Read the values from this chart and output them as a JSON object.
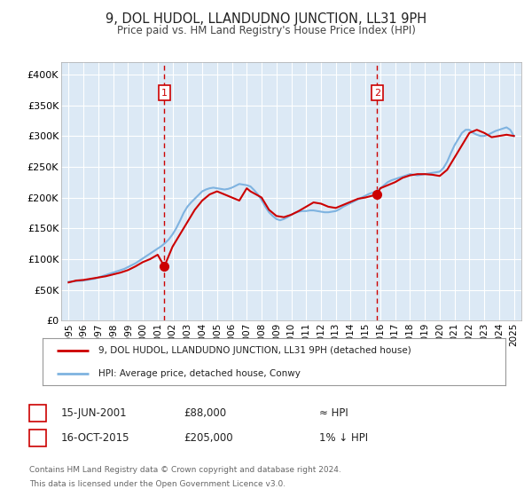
{
  "title": "9, DOL HUDOL, LLANDUDNO JUNCTION, LL31 9PH",
  "subtitle": "Price paid vs. HM Land Registry's House Price Index (HPI)",
  "background_color": "#ffffff",
  "plot_bg_color": "#dce9f5",
  "grid_color": "#ffffff",
  "hpi_line_color": "#7fb3e0",
  "price_line_color": "#cc0000",
  "ylim": [
    0,
    420000
  ],
  "yticks": [
    0,
    50000,
    100000,
    150000,
    200000,
    250000,
    300000,
    350000,
    400000
  ],
  "ytick_labels": [
    "£0",
    "£50K",
    "£100K",
    "£150K",
    "£200K",
    "£250K",
    "£300K",
    "£350K",
    "£400K"
  ],
  "xlim_start": 1994.5,
  "xlim_end": 2025.5,
  "xticks": [
    1995,
    1996,
    1997,
    1998,
    1999,
    2000,
    2001,
    2002,
    2003,
    2004,
    2005,
    2006,
    2007,
    2008,
    2009,
    2010,
    2011,
    2012,
    2013,
    2014,
    2015,
    2016,
    2017,
    2018,
    2019,
    2020,
    2021,
    2022,
    2023,
    2024,
    2025
  ],
  "marker1_x": 2001.45,
  "marker1_y": 88000,
  "marker1_label": "1",
  "marker1_date": "15-JUN-2001",
  "marker1_price": "£88,000",
  "marker1_hpi": "≈ HPI",
  "marker2_x": 2015.79,
  "marker2_y": 205000,
  "marker2_label": "2",
  "marker2_date": "16-OCT-2015",
  "marker2_price": "£205,000",
  "marker2_hpi": "1% ↓ HPI",
  "legend_label1": "9, DOL HUDOL, LLANDUDNO JUNCTION, LL31 9PH (detached house)",
  "legend_label2": "HPI: Average price, detached house, Conwy",
  "footnote1": "Contains HM Land Registry data © Crown copyright and database right 2024.",
  "footnote2": "This data is licensed under the Open Government Licence v3.0.",
  "hpi_data_x": [
    1995.0,
    1995.25,
    1995.5,
    1995.75,
    1996.0,
    1996.25,
    1996.5,
    1996.75,
    1997.0,
    1997.25,
    1997.5,
    1997.75,
    1998.0,
    1998.25,
    1998.5,
    1998.75,
    1999.0,
    1999.25,
    1999.5,
    1999.75,
    2000.0,
    2000.25,
    2000.5,
    2000.75,
    2001.0,
    2001.25,
    2001.5,
    2001.75,
    2002.0,
    2002.25,
    2002.5,
    2002.75,
    2003.0,
    2003.25,
    2003.5,
    2003.75,
    2004.0,
    2004.25,
    2004.5,
    2004.75,
    2005.0,
    2005.25,
    2005.5,
    2005.75,
    2006.0,
    2006.25,
    2006.5,
    2006.75,
    2007.0,
    2007.25,
    2007.5,
    2007.75,
    2008.0,
    2008.25,
    2008.5,
    2008.75,
    2009.0,
    2009.25,
    2009.5,
    2009.75,
    2010.0,
    2010.25,
    2010.5,
    2010.75,
    2011.0,
    2011.25,
    2011.5,
    2011.75,
    2012.0,
    2012.25,
    2012.5,
    2012.75,
    2013.0,
    2013.25,
    2013.5,
    2013.75,
    2014.0,
    2014.25,
    2014.5,
    2014.75,
    2015.0,
    2015.25,
    2015.5,
    2015.75,
    2016.0,
    2016.25,
    2016.5,
    2016.75,
    2017.0,
    2017.25,
    2017.5,
    2017.75,
    2018.0,
    2018.25,
    2018.5,
    2018.75,
    2019.0,
    2019.25,
    2019.5,
    2019.75,
    2020.0,
    2020.25,
    2020.5,
    2020.75,
    2021.0,
    2021.25,
    2021.5,
    2021.75,
    2022.0,
    2022.25,
    2022.5,
    2022.75,
    2023.0,
    2023.25,
    2023.5,
    2023.75,
    2024.0,
    2024.25,
    2024.5,
    2024.75,
    2025.0
  ],
  "hpi_data_y": [
    63000,
    63500,
    64000,
    64500,
    65000,
    66000,
    67000,
    68000,
    70000,
    72000,
    74000,
    76000,
    78000,
    80000,
    82000,
    84000,
    87000,
    90000,
    93000,
    97000,
    101000,
    105000,
    109000,
    113000,
    117000,
    121000,
    126000,
    132000,
    140000,
    150000,
    162000,
    175000,
    185000,
    192000,
    198000,
    204000,
    210000,
    213000,
    215000,
    216000,
    215000,
    214000,
    213000,
    214000,
    216000,
    219000,
    222000,
    221000,
    220000,
    218000,
    212000,
    205000,
    196000,
    185000,
    176000,
    170000,
    165000,
    163000,
    165000,
    168000,
    172000,
    175000,
    177000,
    178000,
    178000,
    179000,
    179000,
    178000,
    177000,
    176000,
    176000,
    177000,
    178000,
    181000,
    185000,
    188000,
    191000,
    194000,
    197000,
    200000,
    203000,
    206000,
    208000,
    210000,
    215000,
    220000,
    225000,
    228000,
    230000,
    232000,
    234000,
    236000,
    238000,
    237000,
    236000,
    237000,
    238000,
    239000,
    240000,
    241000,
    242000,
    248000,
    258000,
    272000,
    285000,
    295000,
    305000,
    310000,
    310000,
    305000,
    302000,
    300000,
    300000,
    302000,
    305000,
    308000,
    310000,
    312000,
    314000,
    310000,
    300000
  ],
  "price_data_x": [
    1995.0,
    1995.5,
    1996.0,
    1996.5,
    1997.0,
    1997.5,
    1998.0,
    1998.5,
    1999.0,
    1999.5,
    2000.0,
    2000.5,
    2001.0,
    2001.45,
    2002.0,
    2002.5,
    2003.0,
    2003.5,
    2004.0,
    2004.5,
    2005.0,
    2005.5,
    2006.0,
    2006.5,
    2007.0,
    2007.25,
    2008.0,
    2008.5,
    2009.0,
    2009.5,
    2010.0,
    2010.5,
    2011.0,
    2011.5,
    2012.0,
    2012.5,
    2013.0,
    2013.5,
    2014.0,
    2014.5,
    2015.0,
    2015.79,
    2016.0,
    2016.5,
    2017.0,
    2017.5,
    2018.0,
    2018.5,
    2019.0,
    2019.5,
    2020.0,
    2020.5,
    2021.0,
    2021.5,
    2022.0,
    2022.5,
    2023.0,
    2023.5,
    2024.0,
    2024.5,
    2025.0
  ],
  "price_data_y": [
    62000,
    65000,
    66000,
    68000,
    70000,
    72000,
    75000,
    78000,
    82000,
    88000,
    95000,
    100000,
    107000,
    88000,
    120000,
    140000,
    160000,
    180000,
    195000,
    205000,
    210000,
    205000,
    200000,
    195000,
    215000,
    210000,
    200000,
    180000,
    170000,
    168000,
    172000,
    178000,
    185000,
    192000,
    190000,
    185000,
    183000,
    188000,
    193000,
    198000,
    200000,
    205000,
    215000,
    220000,
    225000,
    232000,
    236000,
    238000,
    238000,
    237000,
    235000,
    245000,
    265000,
    285000,
    305000,
    310000,
    305000,
    298000,
    300000,
    302000,
    300000
  ]
}
